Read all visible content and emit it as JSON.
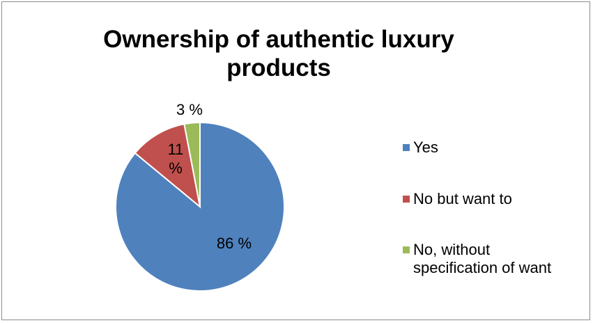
{
  "chart_data": {
    "type": "pie",
    "title": "Ownership of authentic luxury products",
    "legend_position": "right",
    "slices": [
      {
        "name": "Yes",
        "value": 86,
        "label": "86 %",
        "color": "#4f81bd"
      },
      {
        "name": "No but want to",
        "value": 11,
        "label": "11\n%",
        "color": "#c0504d"
      },
      {
        "name": "No, without specification of want",
        "value": 3,
        "label": "3 %",
        "color": "#9bbb59"
      }
    ]
  }
}
